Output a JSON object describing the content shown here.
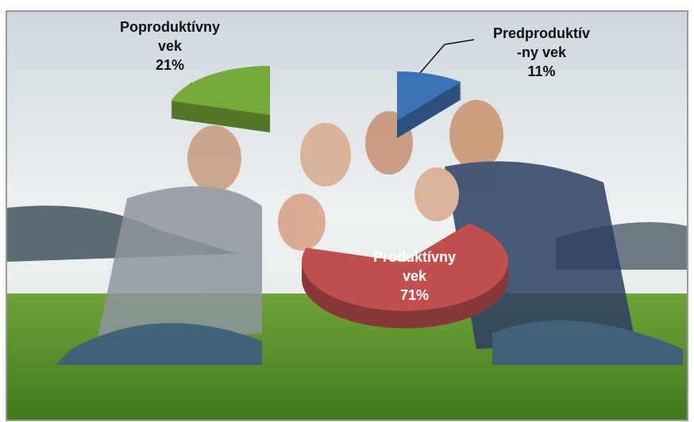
{
  "chart_data": {
    "type": "pie",
    "categories": [
      "Predproduktív\n-ny vek",
      "Produktívny\nvek",
      "Poproduktívny\nvek"
    ],
    "values": [
      11,
      71,
      21
    ],
    "value_labels": [
      "11%",
      "71%",
      "21%"
    ],
    "colors": [
      "#3d72b4",
      "#c0504d",
      "#77a83a"
    ]
  }
}
